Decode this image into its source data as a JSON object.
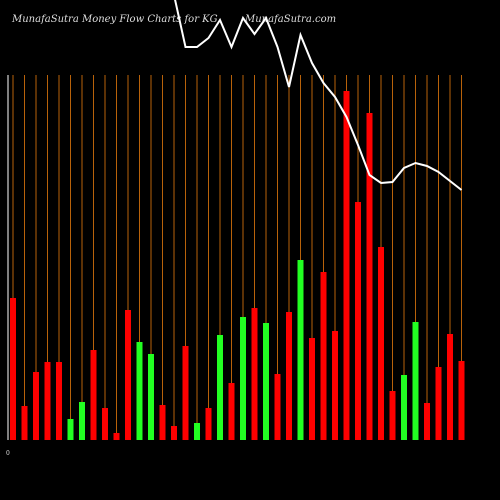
{
  "chart_data": {
    "type": "bar",
    "title": "MunafaSutra  Money Flow  Charts for KG",
    "watermark": "MunafaSutra.com",
    "baseline_label": "0",
    "values": [
      142,
      34,
      68,
      78,
      78,
      21,
      38,
      90,
      32,
      7,
      130,
      98,
      86,
      35,
      14,
      94,
      17,
      32,
      105,
      57,
      123,
      132,
      117,
      66,
      128,
      180,
      102,
      168,
      109,
      349,
      238,
      327,
      193,
      49,
      65,
      118,
      37,
      73,
      106,
      79
    ],
    "colors": [
      "#f00",
      "#f00",
      "#f00",
      "#f00",
      "#f00",
      "#2f2",
      "#2f2",
      "#f00",
      "#f00",
      "#f00",
      "#f00",
      "#2f2",
      "#2f2",
      "#f00",
      "#f00",
      "#f00",
      "#2f2",
      "#f00",
      "#2f2",
      "#f00",
      "#2f2",
      "#f00",
      "#2f2",
      "#f00",
      "#f00",
      "#2f2",
      "#f00",
      "#f00",
      "#f00",
      "#f00",
      "#f00",
      "#f00",
      "#f00",
      "#f00",
      "#2f2",
      "#2f2",
      "#f00",
      "#f00",
      "#f00",
      "#f00"
    ],
    "line": {
      "color": "#fff",
      "values": [
        null,
        null,
        null,
        null,
        null,
        null,
        null,
        null,
        null,
        null,
        null,
        null,
        null,
        null,
        445,
        393,
        393,
        402,
        420,
        393,
        422,
        406,
        422,
        393,
        353,
        405,
        377,
        357,
        343,
        323,
        295,
        265,
        257,
        258,
        272,
        277,
        274,
        268,
        259,
        250
      ]
    },
    "grid_color": "#b8620a"
  }
}
